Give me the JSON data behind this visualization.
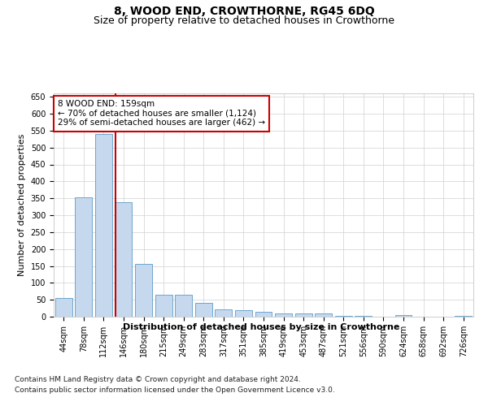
{
  "title": "8, WOOD END, CROWTHORNE, RG45 6DQ",
  "subtitle": "Size of property relative to detached houses in Crowthorne",
  "xlabel": "Distribution of detached houses by size in Crowthorne",
  "ylabel": "Number of detached properties",
  "categories": [
    "44sqm",
    "78sqm",
    "112sqm",
    "146sqm",
    "180sqm",
    "215sqm",
    "249sqm",
    "283sqm",
    "317sqm",
    "351sqm",
    "385sqm",
    "419sqm",
    "453sqm",
    "487sqm",
    "521sqm",
    "556sqm",
    "590sqm",
    "624sqm",
    "658sqm",
    "692sqm",
    "726sqm"
  ],
  "values": [
    55,
    353,
    540,
    338,
    155,
    65,
    65,
    40,
    22,
    20,
    15,
    10,
    10,
    10,
    3,
    3,
    0,
    4,
    0,
    0,
    3
  ],
  "bar_color": "#c5d8ed",
  "bar_edge_color": "#5a9bc8",
  "vline_color": "#cc0000",
  "annotation_line1": "8 WOOD END: 159sqm",
  "annotation_line2": "← 70% of detached houses are smaller (1,124)",
  "annotation_line3": "29% of semi-detached houses are larger (462) →",
  "annotation_box_color": "#ffffff",
  "annotation_box_edge_color": "#cc0000",
  "ylim": [
    0,
    660
  ],
  "yticks": [
    0,
    50,
    100,
    150,
    200,
    250,
    300,
    350,
    400,
    450,
    500,
    550,
    600,
    650
  ],
  "footer_line1": "Contains HM Land Registry data © Crown copyright and database right 2024.",
  "footer_line2": "Contains public sector information licensed under the Open Government Licence v3.0.",
  "bg_color": "#ffffff",
  "grid_color": "#d0d0d0",
  "title_fontsize": 10,
  "subtitle_fontsize": 9,
  "tick_fontsize": 7,
  "ylabel_fontsize": 8,
  "xlabel_fontsize": 8,
  "annotation_fontsize": 7.5,
  "footer_fontsize": 6.5
}
